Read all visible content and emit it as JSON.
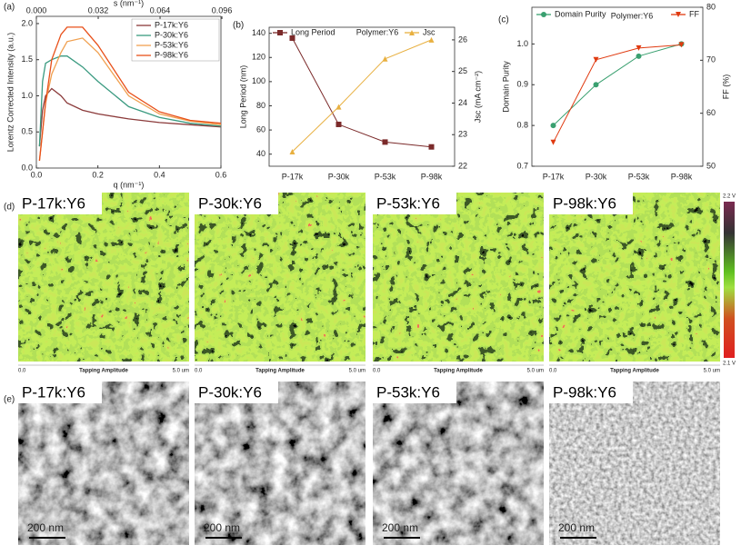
{
  "chart_data": [
    {
      "type": "line",
      "panel": "(a)",
      "xlabel": "q (nm⁻¹)",
      "ylabel": "Lorentz Corrected Intensity (a.u.)",
      "x2label": "s (nm⁻¹)",
      "x": [
        0.01,
        0.02,
        0.03,
        0.05,
        0.08,
        0.1,
        0.15,
        0.2,
        0.3,
        0.4,
        0.5,
        0.6
      ],
      "xlim": [
        0,
        0.6
      ],
      "xticks": [
        {
          "value": 0,
          "label": "0.0"
        },
        0.2,
        0.4,
        0.6
      ],
      "ylim": [
        0,
        2.1
      ],
      "yticks": [
        {
          "value": 0,
          "label": "0.0"
        },
        0.5,
        {
          "value": 1,
          "label": "1.0"
        },
        1.5,
        {
          "value": 2,
          "label": "2.0"
        }
      ],
      "x2lim": [
        0,
        0.0955
      ],
      "x2ticks": [
        {
          "value": 0,
          "label": "0.000"
        },
        0.032,
        0.064,
        0.096
      ],
      "series": [
        {
          "name": "P-17k:Y6",
          "color": "#8b3a3a",
          "values": [
            0.3,
            0.8,
            1.0,
            1.1,
            1.0,
            0.9,
            0.8,
            0.75,
            0.68,
            0.63,
            0.6,
            0.57
          ]
        },
        {
          "name": "P-30k:Y6",
          "color": "#3a9a80",
          "values": [
            0.3,
            1.2,
            1.45,
            1.5,
            1.55,
            1.55,
            1.4,
            1.2,
            0.85,
            0.7,
            0.62,
            0.58
          ]
        },
        {
          "name": "P-53k:Y6",
          "color": "#f0a050",
          "values": [
            0.1,
            0.5,
            0.9,
            1.3,
            1.6,
            1.75,
            1.8,
            1.6,
            1.0,
            0.75,
            0.65,
            0.6
          ]
        },
        {
          "name": "P-98k:Y6",
          "color": "#e8501a",
          "values": [
            0.1,
            0.5,
            0.9,
            1.5,
            1.85,
            1.95,
            1.95,
            1.7,
            1.05,
            0.78,
            0.66,
            0.62
          ]
        }
      ]
    },
    {
      "type": "line",
      "panel": "(b)",
      "annotation": "Polymer:Y6",
      "ylabel": "Long Period (nm)",
      "y2label": "Jsc (mA cm⁻²)",
      "categories": [
        "P-17k",
        "P-30k",
        "P-53k",
        "P-98k"
      ],
      "ylim": [
        30,
        145
      ],
      "yticks": [
        40,
        60,
        80,
        100,
        120,
        140
      ],
      "y2lim": [
        22,
        26.4
      ],
      "y2ticks": [
        22,
        23,
        24,
        25,
        26
      ],
      "series": [
        {
          "name": "Long Period",
          "color": "#7b2a2a",
          "marker": "square",
          "values": [
            136,
            64.6,
            50,
            46
          ]
        },
        {
          "name": "Jsc",
          "color": "#e8b040",
          "marker": "triangle",
          "axis": "y2",
          "values": [
            22.46,
            23.88,
            25.4,
            26
          ]
        }
      ]
    },
    {
      "type": "line",
      "panel": "(c)",
      "annotation": "Polymer:Y6",
      "ylabel": "Domain Purity",
      "y2label": "FF (%)",
      "categories": [
        "P-17k",
        "P-30k",
        "P-53k",
        "P-98k"
      ],
      "ylim": [
        0.7,
        1.09
      ],
      "yticks": [
        0.7,
        0.8,
        0.9,
        {
          "value": 1,
          "label": "1.0"
        }
      ],
      "y2lim": [
        50,
        80
      ],
      "y2ticks": [
        50,
        60,
        70,
        80
      ],
      "series": [
        {
          "name": "Domain Purity",
          "color": "#3aa070",
          "marker": "circle",
          "values": [
            0.8,
            0.9,
            0.97,
            1.0
          ]
        },
        {
          "name": "FF",
          "color": "#e03a10",
          "marker": "triangle-down",
          "axis": "y2",
          "values": [
            54.5,
            70.1,
            72.3,
            72.9
          ]
        }
      ]
    }
  ],
  "afm": {
    "panel": "(d)",
    "labels": [
      "P-17k:Y6",
      "P-30k:Y6",
      "P-53k:Y6",
      "P-98k:Y6"
    ],
    "axis": {
      "start": "0.0",
      "label": "Tapping Amplitude",
      "end": "5.0 um"
    },
    "colorbar": {
      "max": "2.2 V",
      "min": "2.1 V"
    }
  },
  "tem": {
    "panel": "(e)",
    "labels": [
      "P-17k:Y6",
      "P-30k:Y6",
      "P-53k:Y6",
      "P-98k:Y6"
    ],
    "scale_bar": "200 nm"
  }
}
